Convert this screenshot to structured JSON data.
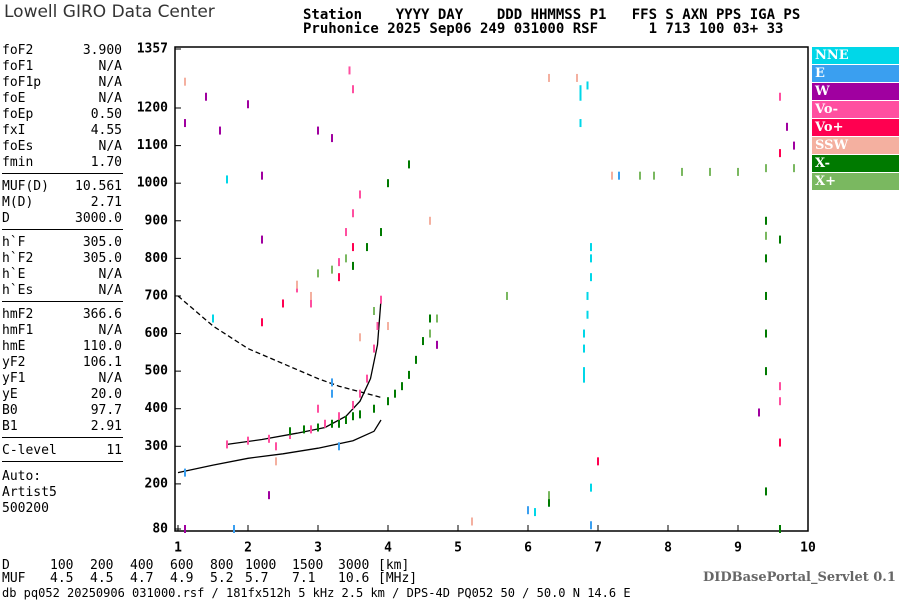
{
  "header": {
    "logo": "Lowell GIRO Data Center",
    "row1": "Station    YYYY DAY    DDD HHMMSS P1   FFS S AXN PPS IGA PS",
    "row2": "Pruhonice 2025 Sep06 249 031000 RSF      1 713 100 03+ 33"
  },
  "params": [
    [
      [
        "foF2",
        "3.900"
      ],
      [
        "foF1",
        "N/A"
      ],
      [
        "foF1p",
        "N/A"
      ],
      [
        "foE",
        "N/A"
      ],
      [
        "foEp",
        "0.50"
      ],
      [
        "fxI",
        "4.55"
      ],
      [
        "foEs",
        "N/A"
      ],
      [
        "fmin",
        "1.70"
      ]
    ],
    [
      [
        "MUF(D)",
        "10.561"
      ],
      [
        "M(D)",
        "2.71"
      ],
      [
        "D",
        "3000.0"
      ]
    ],
    [
      [
        "h`F",
        "305.0"
      ],
      [
        "h`F2",
        "305.0"
      ],
      [
        "h`E",
        "N/A"
      ],
      [
        "h`Es",
        "N/A"
      ]
    ],
    [
      [
        "hmF2",
        "366.6"
      ],
      [
        "hmF1",
        "N/A"
      ],
      [
        "hmE",
        "110.0"
      ],
      [
        "yF2",
        "106.1"
      ],
      [
        "yF1",
        "N/A"
      ],
      [
        "yE",
        "20.0"
      ],
      [
        "B0",
        "97.7"
      ],
      [
        "B1",
        "2.91"
      ]
    ],
    [
      [
        "C-level",
        "11"
      ]
    ]
  ],
  "auto": [
    "Auto:",
    "Artist5",
    "500200"
  ],
  "muf_table": {
    "rows": [
      [
        "D",
        "100",
        "200",
        "400",
        "600",
        "800",
        "1000",
        "1500",
        "3000",
        "[km]"
      ],
      [
        "MUF",
        "4.5",
        "4.5",
        "4.7",
        "4.9",
        "5.2",
        "5.7",
        "7.1",
        "10.6",
        "[MHz]"
      ]
    ]
  },
  "footer": {
    "file": "db pq052 20250906 031000.rsf / 181fx512h 5 kHz 2.5 km / DPS-4D PQ052 50 / 50.0 N 14.6 E",
    "servlet": "DIDBasePortal_Servlet 0.1"
  },
  "chart_data": {
    "type": "scatter",
    "xlim": [
      1,
      10
    ],
    "ylim": [
      80,
      1357
    ],
    "xticks": [
      1,
      2,
      3,
      4,
      5,
      6,
      7,
      8,
      9,
      10
    ],
    "yticks": [
      80,
      200,
      300,
      400,
      500,
      600,
      700,
      800,
      900,
      1000,
      1100,
      1200,
      1357
    ],
    "series": [
      {
        "name": "NNE",
        "color": "#00d7e8",
        "x": [
          6.75,
          6.75,
          6.85,
          6.75,
          6.8,
          6.8,
          6.8,
          6.85,
          6.85,
          6.9,
          6.9,
          6.9,
          6.8,
          6.9,
          6.3,
          1.5,
          6.1,
          1.7
        ],
        "values": [
          1250,
          1230,
          1260,
          1160,
          500,
          560,
          600,
          650,
          700,
          750,
          800,
          830,
          480,
          190,
          150,
          640,
          125,
          1010
        ]
      },
      {
        "name": "E",
        "color": "#3a9ff0",
        "x": [
          3.2,
          3.2,
          1.8,
          1.1,
          3.3,
          6.9,
          6.0,
          7.3
        ],
        "values": [
          470,
          440,
          80,
          230,
          300,
          90,
          130,
          1020
        ]
      },
      {
        "name": "W",
        "color": "#a000a0",
        "x": [
          1.1,
          1.6,
          2.0,
          2.2,
          2.2,
          3.0,
          3.2,
          1.4,
          1.1,
          9.7,
          9.8,
          2.3,
          4.7,
          9.3
        ],
        "values": [
          1160,
          1140,
          1210,
          1020,
          850,
          1140,
          1120,
          1230,
          80,
          1150,
          1100,
          170,
          570,
          390
        ]
      },
      {
        "name": "Vo-",
        "color": "#ff4fa0",
        "x": [
          1.7,
          2.0,
          2.3,
          2.6,
          2.9,
          3.1,
          3.3,
          3.5,
          3.6,
          3.7,
          3.8,
          3.85,
          3.9,
          3.3,
          3.4,
          3.5,
          3.6,
          3.5,
          3.45,
          2.7,
          2.9,
          9.6,
          9.6,
          9.6,
          2.4,
          3.0
        ],
        "values": [
          305,
          315,
          320,
          330,
          345,
          360,
          380,
          410,
          440,
          480,
          560,
          620,
          690,
          790,
          870,
          920,
          970,
          1250,
          1300,
          720,
          680,
          1230,
          460,
          420,
          300,
          400
        ]
      },
      {
        "name": "Vo+",
        "color": "#ff0050",
        "x": [
          2.2,
          2.5,
          3.3,
          3.5,
          9.6,
          9.6,
          7.0
        ],
        "values": [
          630,
          680,
          750,
          830,
          1080,
          310,
          260
        ]
      },
      {
        "name": "SSW",
        "color": "#f4b0a0",
        "x": [
          1.1,
          2.7,
          2.9,
          3.6,
          4.0,
          4.6,
          5.2,
          6.7,
          6.3,
          7.2,
          2.4
        ],
        "values": [
          1270,
          730,
          700,
          590,
          620,
          900,
          100,
          1280,
          1280,
          1020,
          260
        ]
      },
      {
        "name": "X-",
        "color": "#007a00",
        "x": [
          2.6,
          2.8,
          3.0,
          3.2,
          3.4,
          3.6,
          3.8,
          4.0,
          4.1,
          4.2,
          4.3,
          4.4,
          4.5,
          4.6,
          3.5,
          3.7,
          3.9,
          4.0,
          4.3,
          9.4,
          9.4,
          9.4,
          9.4,
          9.4,
          9.4,
          9.6,
          9.6,
          6.3,
          3.3,
          3.5
        ],
        "values": [
          340,
          345,
          350,
          360,
          370,
          385,
          400,
          420,
          440,
          460,
          490,
          530,
          580,
          640,
          780,
          830,
          870,
          1000,
          1050,
          900,
          800,
          700,
          600,
          500,
          180,
          850,
          80,
          150,
          360,
          380
        ]
      },
      {
        "name": "X+",
        "color": "#7ab860",
        "x": [
          3.0,
          3.2,
          3.4,
          4.6,
          4.7,
          7.6,
          7.8,
          8.2,
          8.6,
          9.0,
          9.4,
          9.8,
          5.7,
          3.8,
          6.3,
          9.4
        ],
        "values": [
          760,
          770,
          800,
          600,
          640,
          1020,
          1020,
          1030,
          1030,
          1030,
          1040,
          1040,
          700,
          660,
          170,
          860
        ]
      }
    ],
    "lines": [
      {
        "color": "#000000",
        "dashed": false,
        "x": [
          1.7,
          2.2,
          2.7,
          3.1,
          3.4,
          3.6,
          3.75,
          3.85,
          3.9
        ],
        "values": [
          305,
          318,
          335,
          350,
          380,
          420,
          480,
          570,
          690
        ]
      },
      {
        "color": "#000000",
        "dashed": false,
        "x": [
          1,
          1.5,
          2,
          2.5,
          3,
          3.5,
          3.8,
          3.9
        ],
        "values": [
          230,
          250,
          268,
          280,
          295,
          315,
          340,
          370
        ]
      },
      {
        "color": "#000000",
        "dashed": true,
        "x": [
          1,
          1.5,
          2,
          2.5,
          3,
          3.3,
          3.6,
          3.9
        ],
        "values": [
          700,
          620,
          560,
          520,
          480,
          460,
          445,
          430
        ]
      }
    ]
  }
}
